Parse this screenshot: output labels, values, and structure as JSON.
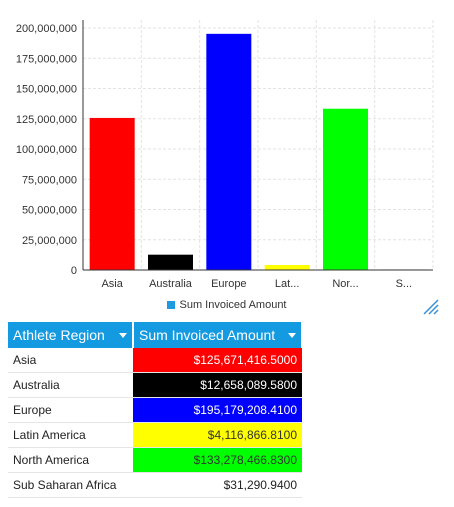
{
  "chart_data": {
    "type": "bar",
    "categories": [
      "Asia",
      "Australia",
      "Europe",
      "Lat...",
      "Nor...",
      "S..."
    ],
    "values": [
      125671416.5,
      12658089.58,
      195179208.41,
      4116866.81,
      133278466.83,
      31290.94
    ],
    "colors": [
      "#ff0000",
      "#000000",
      "#0000ff",
      "#ffff00",
      "#00ff00",
      "#c0c0c0"
    ],
    "ylim": [
      0,
      200000000
    ],
    "yticks": [
      "0",
      "25,000,000",
      "50,000,000",
      "75,000,000",
      "100,000,000",
      "125,000,000",
      "150,000,000",
      "175,000,000",
      "200,000,000"
    ],
    "ytick_values": [
      0,
      25000000,
      50000000,
      75000000,
      100000000,
      125000000,
      150000000,
      175000000,
      200000000
    ],
    "grid": true,
    "legend": {
      "position": "bottom",
      "entries": [
        {
          "label": "Sum Invoiced Amount",
          "color": "#1e9be0"
        }
      ]
    }
  },
  "table": {
    "headers": [
      "Athlete Region",
      "Sum Invoiced Amount"
    ],
    "rows": [
      {
        "region": "Asia",
        "amount": "$125,671,416.5000",
        "bg": "#ff0000",
        "fg": "#ffffff"
      },
      {
        "region": "Australia",
        "amount": "$12,658,089.5800",
        "bg": "#000000",
        "fg": "#ffffff"
      },
      {
        "region": "Europe",
        "amount": "$195,179,208.4100",
        "bg": "#0000ff",
        "fg": "#ffffff"
      },
      {
        "region": "Latin America",
        "amount": "$4,116,866.8100",
        "bg": "#ffff00",
        "fg": "#333333"
      },
      {
        "region": "North America",
        "amount": "$133,278,466.8300",
        "bg": "#00ff00",
        "fg": "#333333"
      },
      {
        "region": "Sub Saharan Africa",
        "amount": "$31,290.9400",
        "bg": "#ffffff",
        "fg": "#222222"
      }
    ]
  }
}
